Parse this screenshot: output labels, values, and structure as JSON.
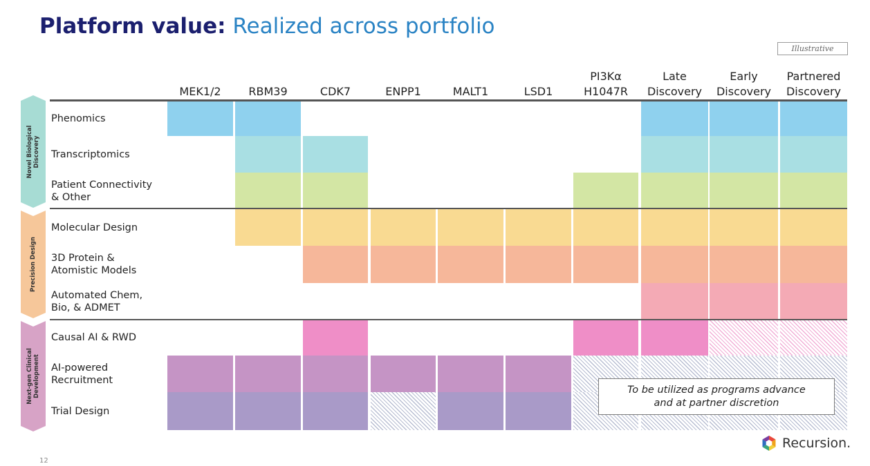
{
  "title": {
    "bold": "Platform value:",
    "light": "Realized across portfolio"
  },
  "tag": "Illustrative",
  "columns": [
    {
      "line1": "",
      "line2": "MEK1/2"
    },
    {
      "line1": "",
      "line2": "RBM39"
    },
    {
      "line1": "",
      "line2": "CDK7"
    },
    {
      "line1": "",
      "line2": "ENPP1"
    },
    {
      "line1": "",
      "line2": "MALT1"
    },
    {
      "line1": "",
      "line2": "LSD1"
    },
    {
      "line1": "PI3Kα",
      "line2": "H1047R"
    },
    {
      "line1": "Late",
      "line2": "Discovery"
    },
    {
      "line1": "Early",
      "line2": "Discovery"
    },
    {
      "line1": "Partnered",
      "line2": "Discovery"
    }
  ],
  "groups": [
    {
      "label_line1": "Novel Biological",
      "label_line2": "Discovery",
      "color": "#a7dcd4"
    },
    {
      "label_line1": "Precision Design",
      "label_line2": "",
      "color": "#f6c79a"
    },
    {
      "label_line1": "Next-gen Clinical",
      "label_line2": "Development",
      "color": "#d7a3c6"
    }
  ],
  "rows": [
    {
      "line1": "Phenomics",
      "line2": "",
      "color": "#8fd1ee",
      "cells": [
        "filled",
        "filled",
        "",
        "",
        "",
        "",
        "",
        "filled",
        "filled",
        "filled"
      ]
    },
    {
      "line1": "Transcriptomics",
      "line2": "",
      "color": "#a9dfe3",
      "cells": [
        "",
        "filled",
        "filled",
        "",
        "",
        "",
        "",
        "filled",
        "filled",
        "filled"
      ]
    },
    {
      "line1": "Patient Connectivity",
      "line2": "& Other",
      "color": "#d3e6a4",
      "cells": [
        "",
        "filled",
        "filled",
        "",
        "",
        "",
        "filled",
        "filled",
        "filled",
        "filled"
      ]
    },
    {
      "line1": "Molecular Design",
      "line2": "",
      "color": "#f9da92",
      "cells": [
        "",
        "filled",
        "filled",
        "filled",
        "filled",
        "filled",
        "filled",
        "filled",
        "filled",
        "filled"
      ]
    },
    {
      "line1": "3D Protein &",
      "line2": "Atomistic Models",
      "color": "#f6b79a",
      "cells": [
        "",
        "",
        "filled",
        "filled",
        "filled",
        "filled",
        "filled",
        "filled",
        "filled",
        "filled"
      ]
    },
    {
      "line1": "Automated Chem,",
      "line2": "Bio, & ADMET",
      "color": "#f4aab5",
      "cells": [
        "",
        "",
        "",
        "",
        "",
        "",
        "",
        "filled",
        "filled",
        "filled"
      ]
    },
    {
      "line1": "Causal AI & RWD",
      "line2": "",
      "color": "#ef8ec7",
      "cells": [
        "",
        "",
        "filled",
        "",
        "",
        "",
        "filled",
        "filled",
        "hatch-pink",
        "hatch-pink"
      ]
    },
    {
      "line1": "AI-powered",
      "line2": "Recruitment",
      "color": "#c594c5",
      "cells": [
        "filled",
        "filled",
        "filled",
        "filled",
        "filled",
        "filled",
        "hatch",
        "hatch",
        "hatch",
        "hatch"
      ]
    },
    {
      "line1": "Trial Design",
      "line2": "",
      "color": "#a99ac8",
      "cells": [
        "filled",
        "filled",
        "filled",
        "hatch",
        "filled",
        "filled",
        "hatch",
        "hatch",
        "hatch",
        "hatch"
      ]
    }
  ],
  "note": {
    "line1": "To be utilized as programs advance",
    "line2": "and at partner discretion"
  },
  "brand": {
    "name": "Recursion.",
    "icon": "recursion-hexagon-icon"
  },
  "page_number": "12"
}
